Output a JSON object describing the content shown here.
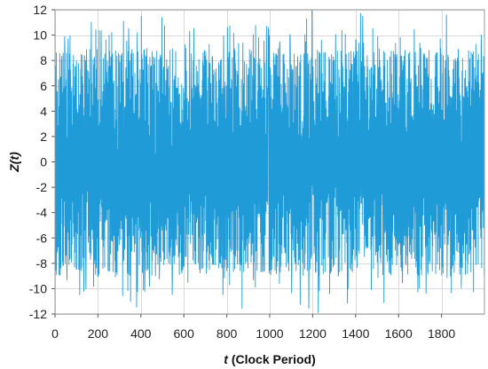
{
  "chart_data": {
    "type": "line",
    "title": "",
    "xlabel": "t (Clock Period)",
    "xlabel_var": "t",
    "xlabel_unit": "(Clock Period)",
    "ylabel": "Z(t)",
    "xlim": [
      0,
      2000
    ],
    "ylim": [
      -12,
      12
    ],
    "x_ticks": [
      0,
      200,
      400,
      600,
      800,
      1000,
      1200,
      1400,
      1600,
      1800
    ],
    "y_ticks": [
      12,
      10,
      8,
      6,
      4,
      2,
      0,
      -2,
      -4,
      -6,
      -8,
      -10,
      -12
    ],
    "grid": true,
    "legend": "none",
    "series": [
      {
        "color": "#1f9bd7",
        "sampling": {
          "x_start": 0,
          "x_end": 1999,
          "step": 1
        },
        "value_envelope": {
          "typical_min": -9,
          "typical_max": 9,
          "peak_min": -12,
          "peak_max": 12
        },
        "description_of_values": "Dense oscillating signal; samples mostly between -9 and 9 with sparse spikes to about +/-12"
      }
    ]
  }
}
